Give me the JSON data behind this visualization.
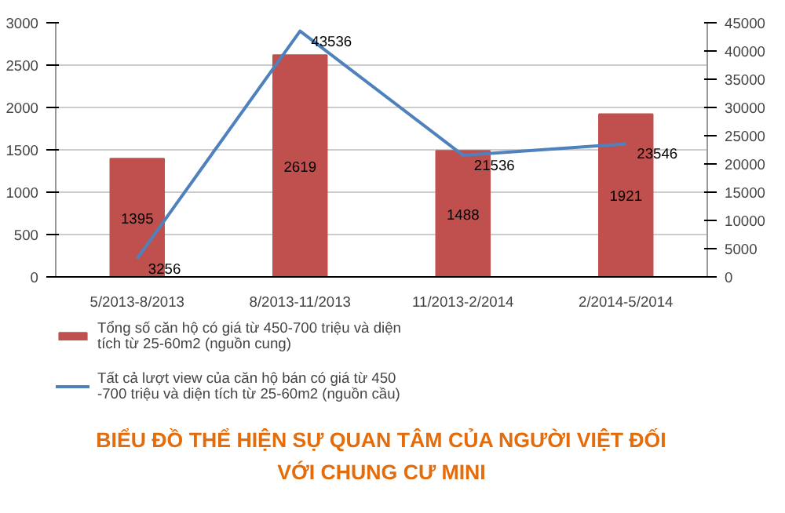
{
  "chart_data": {
    "type": "bar",
    "title": "BIỂU ĐỒ THỂ HIỆN SỰ QUAN TÂM CỦA NGƯỜI VIỆT ĐỐI VỚI CHUNG CƯ MINI",
    "categories": [
      "5/2013-8/2013",
      "8/2013-11/2013",
      "11/2013-2/2014",
      "2/2014-5/2014"
    ],
    "series": [
      {
        "name": "Tổng số căn hộ có giá từ 450-700 triệu và diện tích từ 25-60m2 (nguồn cung)",
        "color": "#c0504d",
        "values": [
          1395,
          2619,
          1488,
          1921
        ]
      },
      {
        "name": "Tất cả lượt view của căn hộ bán có giá từ 450 -700 triệu và diện tích từ 25-60m2 (nguồn cầu)",
        "color": "#4f81bd",
        "type": "line",
        "axis": "y2",
        "values": [
          3256,
          43536,
          21536,
          23546
        ]
      }
    ],
    "ylim": [
      0,
      3000
    ],
    "yticks": [
      0,
      500,
      1000,
      1500,
      2000,
      2500,
      3000
    ],
    "y2lim": [
      0,
      45000
    ],
    "y2ticks": [
      0,
      5000,
      10000,
      15000,
      20000,
      25000,
      30000,
      35000,
      40000,
      45000
    ],
    "grid": "y",
    "legend": "bottom left",
    "data_labels": true
  }
}
